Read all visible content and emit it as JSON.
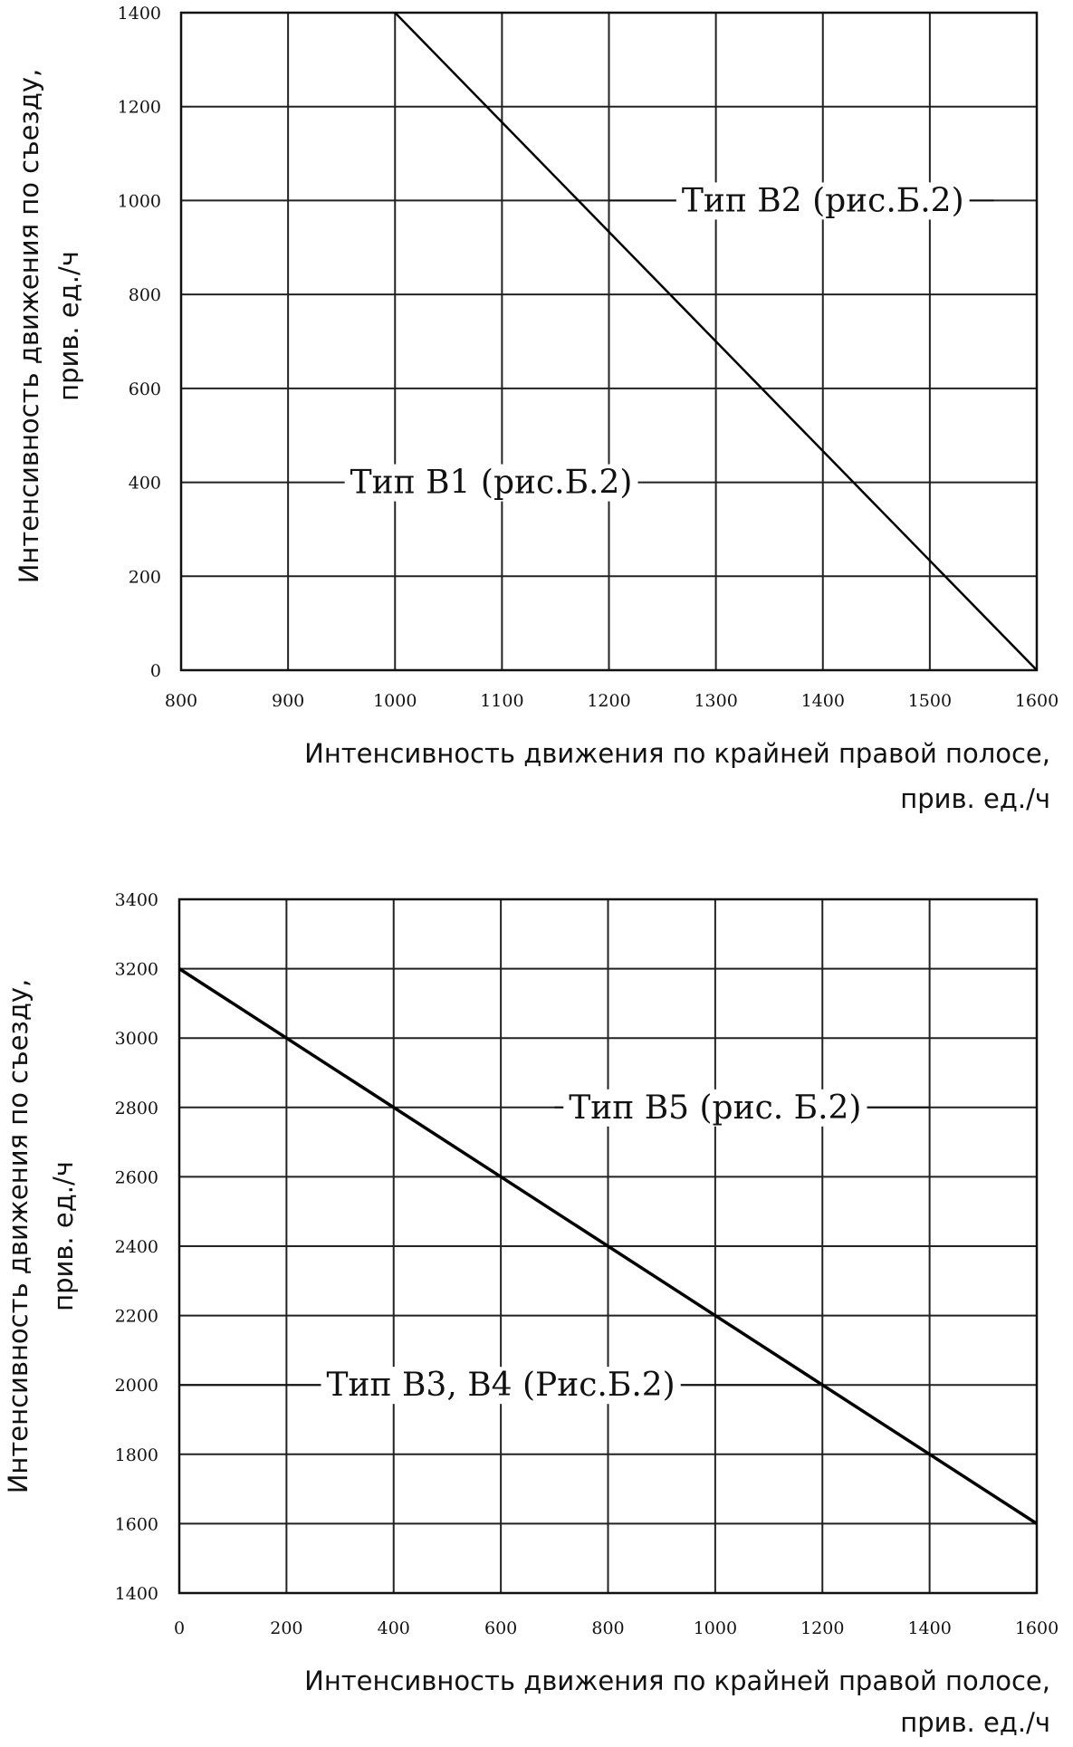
{
  "chart_data": [
    {
      "type": "line",
      "xlim": [
        800,
        1600
      ],
      "ylim": [
        0,
        1400
      ],
      "x_ticks": [
        "800",
        "900",
        "1000",
        "1100",
        "1200",
        "1300",
        "1400",
        "1500",
        "1600"
      ],
      "y_ticks": [
        "0",
        "200",
        "400",
        "600",
        "800",
        "1000",
        "1200",
        "1400"
      ],
      "xlabel_lines": [
        "Интенсивность движения по крайней правой полосе,",
        "прив. ед./ч"
      ],
      "ylabel_lines": [
        "Интенсивность движения по съезду,",
        "прив. ед./ч"
      ],
      "grid": true,
      "series": [
        {
          "x": [
            1000,
            1600
          ],
          "y": [
            1400,
            0
          ]
        }
      ],
      "annotations": [
        {
          "text": "Тип В2 (рис.Б.2)",
          "x": 1400,
          "y": 1000,
          "leader_x": [
            1200,
            1560
          ]
        },
        {
          "text": "Тип В1 (рис.Б.2)",
          "x": 1090,
          "y": 400,
          "leader_x": [
            1000,
            1200
          ]
        }
      ]
    },
    {
      "type": "line",
      "xlim": [
        0,
        1600
      ],
      "ylim": [
        1400,
        3400
      ],
      "x_ticks": [
        "0",
        "200",
        "400",
        "600",
        "800",
        "1000",
        "1200",
        "1400",
        "1600"
      ],
      "y_ticks": [
        "1400",
        "1600",
        "1800",
        "2000",
        "2200",
        "2400",
        "2600",
        "2800",
        "3000",
        "3200",
        "3400"
      ],
      "y_tick_values": [
        1400,
        1600,
        1800,
        2000,
        2200,
        2400,
        2600,
        2800,
        3000,
        3200,
        3400
      ],
      "xlabel_lines": [
        "Интенсивность движения по крайней правой полосе,",
        "прив. ед./ч"
      ],
      "ylabel_lines": [
        "Интенсивность движения по съезду,",
        "прив. ед./ч"
      ],
      "grid": true,
      "series": [
        {
          "x": [
            0,
            1600
          ],
          "y": [
            3200,
            1600
          ]
        }
      ],
      "annotations": [
        {
          "text": "Тип В5 (рис. Б.2)",
          "x": 1000,
          "y": 2800,
          "leader_x": [
            700,
            1400
          ]
        },
        {
          "text": "Тип В3, В4 (Рис.Б.2)",
          "x": 600,
          "y": 2000,
          "leader_x": [
            0,
            1200
          ]
        }
      ]
    }
  ]
}
